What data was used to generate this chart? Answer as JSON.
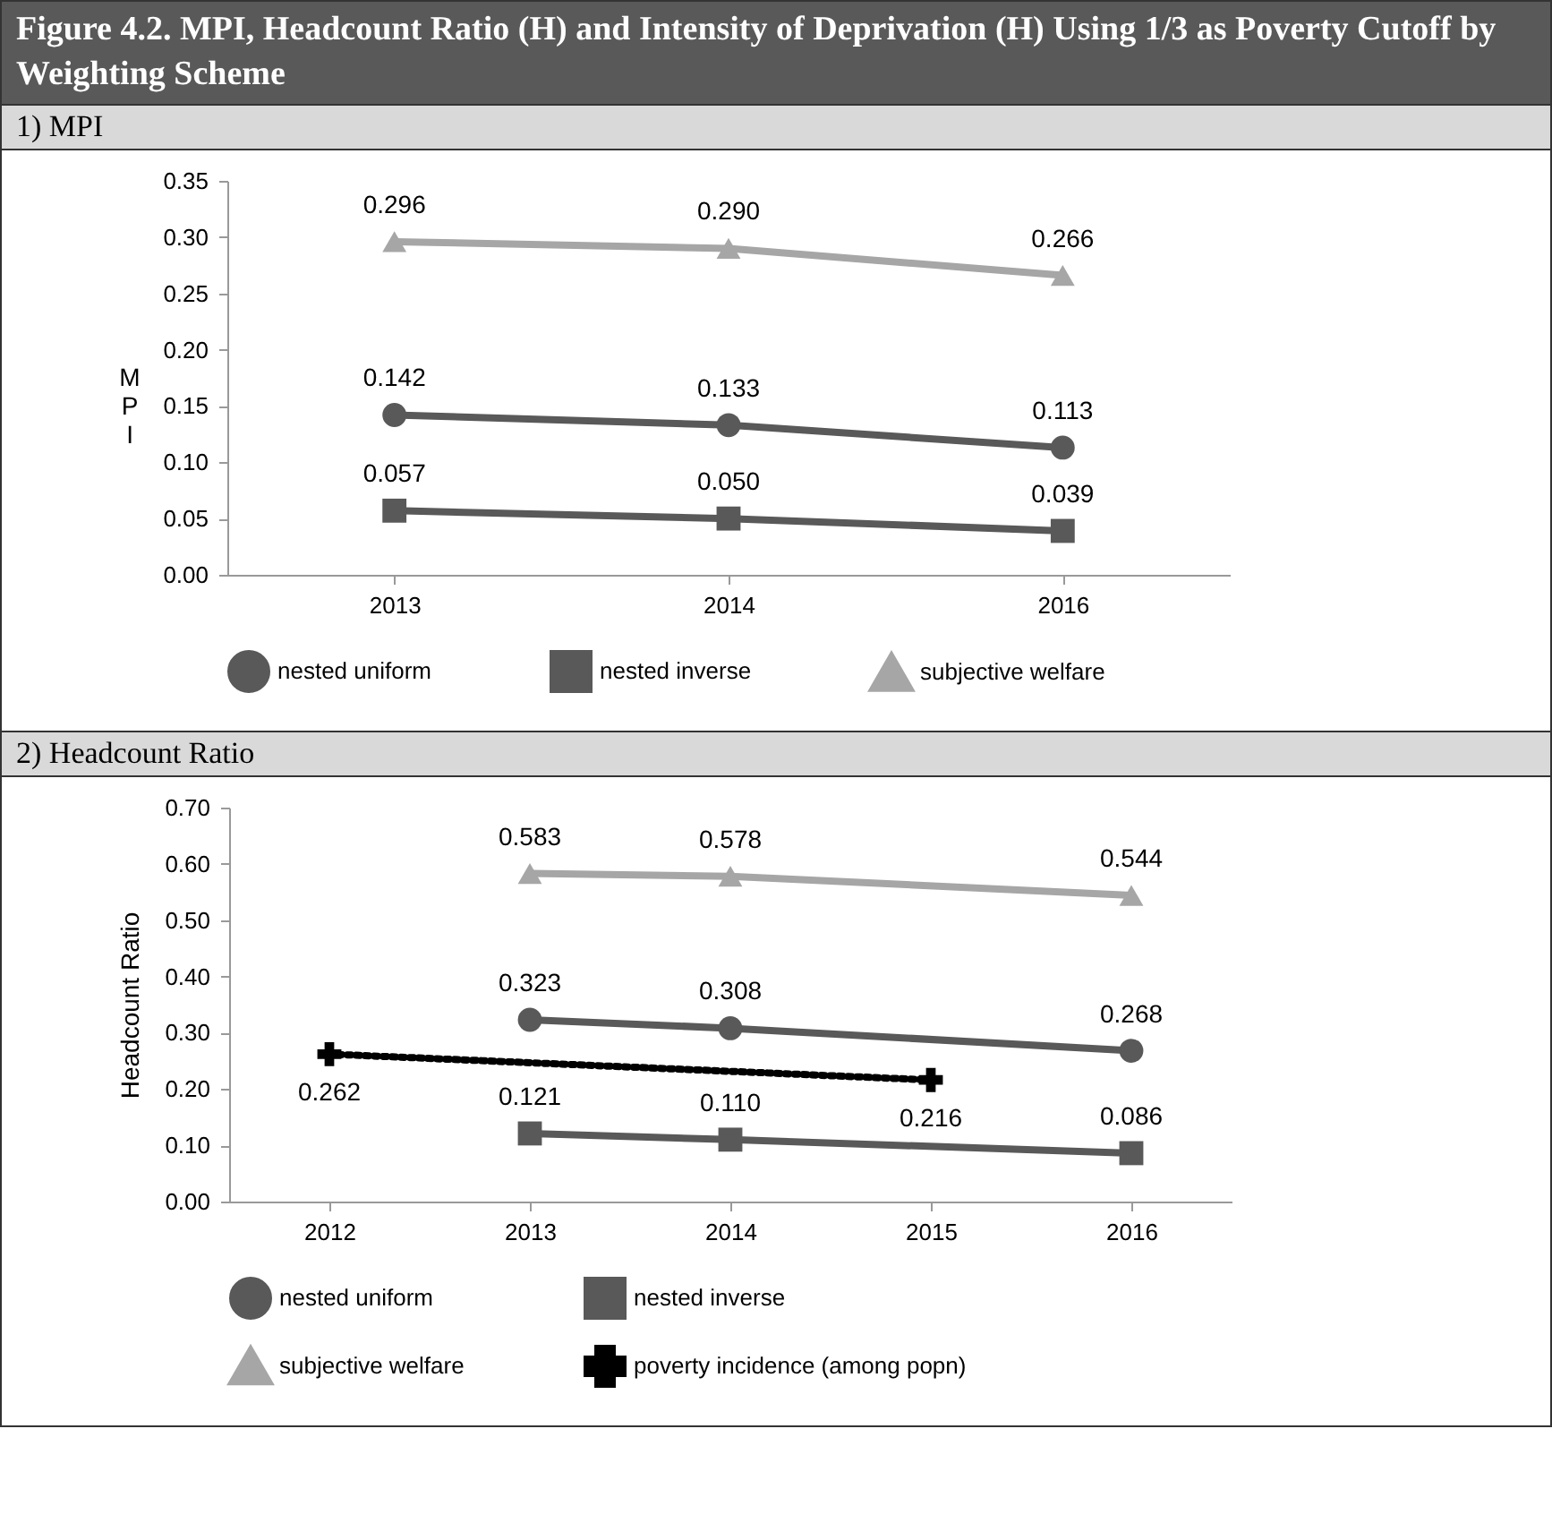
{
  "chart_data": [
    {
      "type": "line",
      "title": "Figure 4.2.  MPI, Headcount Ratio (H) and Intensity of Deprivation (H) Using 1/3 as Poverty Cutoff by Weighting Scheme",
      "subtitle": "1)   MPI",
      "ylabel": "MPI",
      "categories": [
        "2013",
        "2014",
        "2016"
      ],
      "ylim": [
        0,
        0.35
      ],
      "yticks": [
        {
          "value": 0,
          "label": "0.00"
        },
        {
          "value": 0.05,
          "label": "0.05"
        },
        {
          "value": 0.1,
          "label": "0.10"
        },
        {
          "value": 0.15,
          "label": "0.15"
        },
        {
          "value": 0.2,
          "label": "0.20"
        },
        {
          "value": 0.25,
          "label": "0.25"
        },
        {
          "value": 0.3,
          "label": "0.30"
        },
        {
          "value": 0.35,
          "label": "0.35"
        }
      ],
      "grid": false,
      "legend": "bottom",
      "series": [
        {
          "name": "nested uniform",
          "color": "#595959",
          "marker": "circle",
          "values": [
            0.142,
            0.133,
            0.113
          ],
          "value_labels": [
            "0.142",
            "0.133",
            "0.113"
          ]
        },
        {
          "name": "nested inverse",
          "color": "#595959",
          "marker": "square",
          "values": [
            0.057,
            0.05,
            0.039
          ],
          "value_labels": [
            "0.057",
            "0.050",
            "0.039"
          ]
        },
        {
          "name": "subjective welfare",
          "color": "#a6a6a6",
          "marker": "triangle",
          "values": [
            0.296,
            0.29,
            0.266
          ],
          "value_labels": [
            "0.296",
            "0.290",
            "0.266"
          ]
        }
      ]
    },
    {
      "type": "line",
      "subtitle": "2)   Headcount Ratio",
      "ylabel": "Headcount Ratio",
      "categories": [
        "2012",
        "2013",
        "2014",
        "2015",
        "2016"
      ],
      "ylim": [
        0,
        0.7
      ],
      "yticks": [
        {
          "value": 0,
          "label": "0.00"
        },
        {
          "value": 0.1,
          "label": "0.10"
        },
        {
          "value": 0.2,
          "label": "0.20"
        },
        {
          "value": 0.3,
          "label": "0.30"
        },
        {
          "value": 0.4,
          "label": "0.40"
        },
        {
          "value": 0.5,
          "label": "0.50"
        },
        {
          "value": 0.6,
          "label": "0.60"
        },
        {
          "value": 0.7,
          "label": "0.70"
        }
      ],
      "grid": false,
      "legend": "bottom",
      "series": [
        {
          "name": "nested uniform",
          "color": "#595959",
          "marker": "circle",
          "values": [
            null,
            0.323,
            0.308,
            null,
            0.268
          ],
          "value_labels": [
            null,
            "0.323",
            "0.308",
            null,
            "0.268"
          ]
        },
        {
          "name": "nested inverse",
          "color": "#595959",
          "marker": "square",
          "values": [
            null,
            0.121,
            0.11,
            null,
            0.086
          ],
          "value_labels": [
            null,
            "0.121",
            "0.110",
            null,
            "0.086"
          ]
        },
        {
          "name": "subjective welfare",
          "color": "#a6a6a6",
          "marker": "triangle",
          "values": [
            null,
            0.583,
            0.578,
            null,
            0.544
          ],
          "value_labels": [
            null,
            "0.583",
            "0.578",
            null,
            "0.544"
          ]
        },
        {
          "name": "poverty incidence (among popn)",
          "color": "#000000",
          "marker": "cross",
          "line_style": "dotted",
          "values": [
            0.262,
            null,
            null,
            0.216,
            null
          ],
          "value_labels": [
            "0.262",
            null,
            null,
            "0.216",
            null
          ]
        }
      ]
    }
  ]
}
